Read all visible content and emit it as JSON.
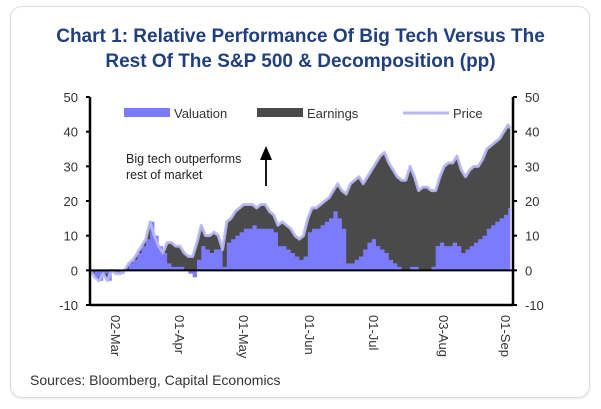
{
  "chart_data": {
    "type": "area",
    "title": "Chart 1: Relative Performance Of Big Tech Versus The Rest Of The S&P 500 & Decomposition (pp)",
    "title_lines": [
      "Chart 1: Relative Performance Of Big Tech Versus The",
      "Rest Of The S&P 500 & Decomposition (pp)"
    ],
    "source": "Sources: Bloomberg, Capital Economics",
    "xlabel": "",
    "ylabel": "",
    "ylim": [
      -10,
      50
    ],
    "yticks": [
      50,
      40,
      30,
      20,
      10,
      0,
      -10
    ],
    "y_right_ticks": [
      50,
      40,
      30,
      20,
      10,
      0,
      -10
    ],
    "x_day_range": [
      -12,
      185
    ],
    "x_ticks": [
      {
        "label": "02-Mar",
        "day": 0
      },
      {
        "label": "01-Apr",
        "day": 30
      },
      {
        "label": "01-May",
        "day": 60
      },
      {
        "label": "01-Jun",
        "day": 91
      },
      {
        "label": "01-Jul",
        "day": 121
      },
      {
        "label": "03-Aug",
        "day": 154
      },
      {
        "label": "01-Sep",
        "day": 183
      }
    ],
    "x_unit": "days since 02-Mar",
    "legend": [
      {
        "name": "Valuation",
        "kind": "area",
        "color": "#7b7bff"
      },
      {
        "name": "Earnings",
        "kind": "area",
        "color": "#4a4a4a"
      },
      {
        "name": "Price",
        "kind": "line",
        "color": "#b8b8f4"
      }
    ],
    "legend_placement": "top",
    "annotation": {
      "lines": [
        "Big tech outperforms",
        "rest of market"
      ],
      "arrow": "up"
    },
    "grid": false,
    "series": [
      {
        "name": "Price",
        "x": [
          -12,
          -10,
          -8,
          -6,
          -4,
          -2,
          0,
          2,
          4,
          6,
          8,
          10,
          12,
          14,
          16,
          18,
          20,
          22,
          24,
          26,
          28,
          30,
          32,
          34,
          36,
          38,
          40,
          42,
          44,
          46,
          48,
          50,
          52,
          54,
          56,
          58,
          60,
          62,
          64,
          66,
          68,
          70,
          72,
          74,
          76,
          78,
          80,
          82,
          84,
          86,
          88,
          90,
          92,
          94,
          96,
          98,
          100,
          102,
          104,
          106,
          108,
          110,
          112,
          114,
          116,
          118,
          120,
          122,
          124,
          126,
          128,
          130,
          132,
          134,
          136,
          138,
          140,
          142,
          144,
          146,
          148,
          150,
          152,
          154,
          156,
          158,
          160,
          162,
          164,
          166,
          168,
          170,
          172,
          174,
          176,
          178,
          180,
          182,
          184,
          185
        ],
        "values": [
          0,
          -2,
          -3,
          -1,
          -3,
          0,
          -1,
          -1,
          0,
          2,
          3,
          5,
          7,
          9,
          14,
          10,
          7,
          5,
          8,
          8,
          7,
          7,
          5,
          4,
          4,
          8,
          13,
          10,
          10,
          11,
          10,
          6,
          14,
          15,
          17,
          18,
          19,
          19,
          19,
          18,
          19,
          19,
          17,
          16,
          13,
          14,
          13,
          12,
          10,
          9,
          10,
          15,
          18,
          18,
          19,
          20,
          21,
          23,
          25,
          23,
          22,
          25,
          26,
          27,
          25,
          27,
          29,
          31,
          33,
          34,
          31,
          29,
          27,
          26,
          26,
          30,
          27,
          23,
          24,
          24,
          23,
          23,
          27,
          30,
          31,
          31,
          33,
          29,
          27,
          29,
          30,
          30,
          32,
          35,
          36,
          37,
          38,
          40,
          42,
          41
        ]
      },
      {
        "name": "Valuation",
        "x": [
          -12,
          -10,
          -8,
          -6,
          -4,
          -2,
          0,
          2,
          4,
          6,
          8,
          10,
          12,
          14,
          16,
          18,
          20,
          22,
          24,
          26,
          28,
          30,
          32,
          34,
          36,
          38,
          40,
          42,
          44,
          46,
          48,
          50,
          52,
          54,
          56,
          58,
          60,
          62,
          64,
          66,
          68,
          70,
          72,
          74,
          76,
          78,
          80,
          82,
          84,
          86,
          88,
          90,
          92,
          94,
          96,
          98,
          100,
          102,
          104,
          106,
          108,
          110,
          112,
          114,
          116,
          118,
          120,
          122,
          124,
          126,
          128,
          130,
          132,
          134,
          136,
          138,
          140,
          142,
          144,
          146,
          148,
          150,
          152,
          154,
          156,
          158,
          160,
          162,
          164,
          166,
          168,
          170,
          172,
          174,
          176,
          178,
          180,
          182,
          184,
          185
        ],
        "values": [
          0,
          -2,
          -3,
          -1,
          -3,
          0,
          -1,
          -1,
          0,
          2,
          3,
          5,
          7,
          9,
          14,
          10,
          7,
          5,
          2,
          1,
          1,
          1,
          0,
          -1,
          -2,
          3,
          7,
          6,
          5,
          6,
          6,
          1,
          8,
          9,
          10,
          11,
          12,
          12,
          13,
          12,
          12,
          12,
          12,
          11,
          7,
          7,
          6,
          5,
          4,
          3,
          4,
          11,
          12,
          12,
          13,
          14,
          15,
          17,
          15,
          12,
          2,
          2,
          3,
          4,
          6,
          8,
          9,
          7,
          6,
          5,
          3,
          2,
          1,
          0,
          0,
          1,
          1,
          0,
          0,
          0,
          1,
          7,
          8,
          7,
          7,
          8,
          7,
          5,
          6,
          7,
          8,
          9,
          10,
          12,
          13,
          14,
          15,
          16,
          18,
          17
        ]
      }
    ]
  }
}
